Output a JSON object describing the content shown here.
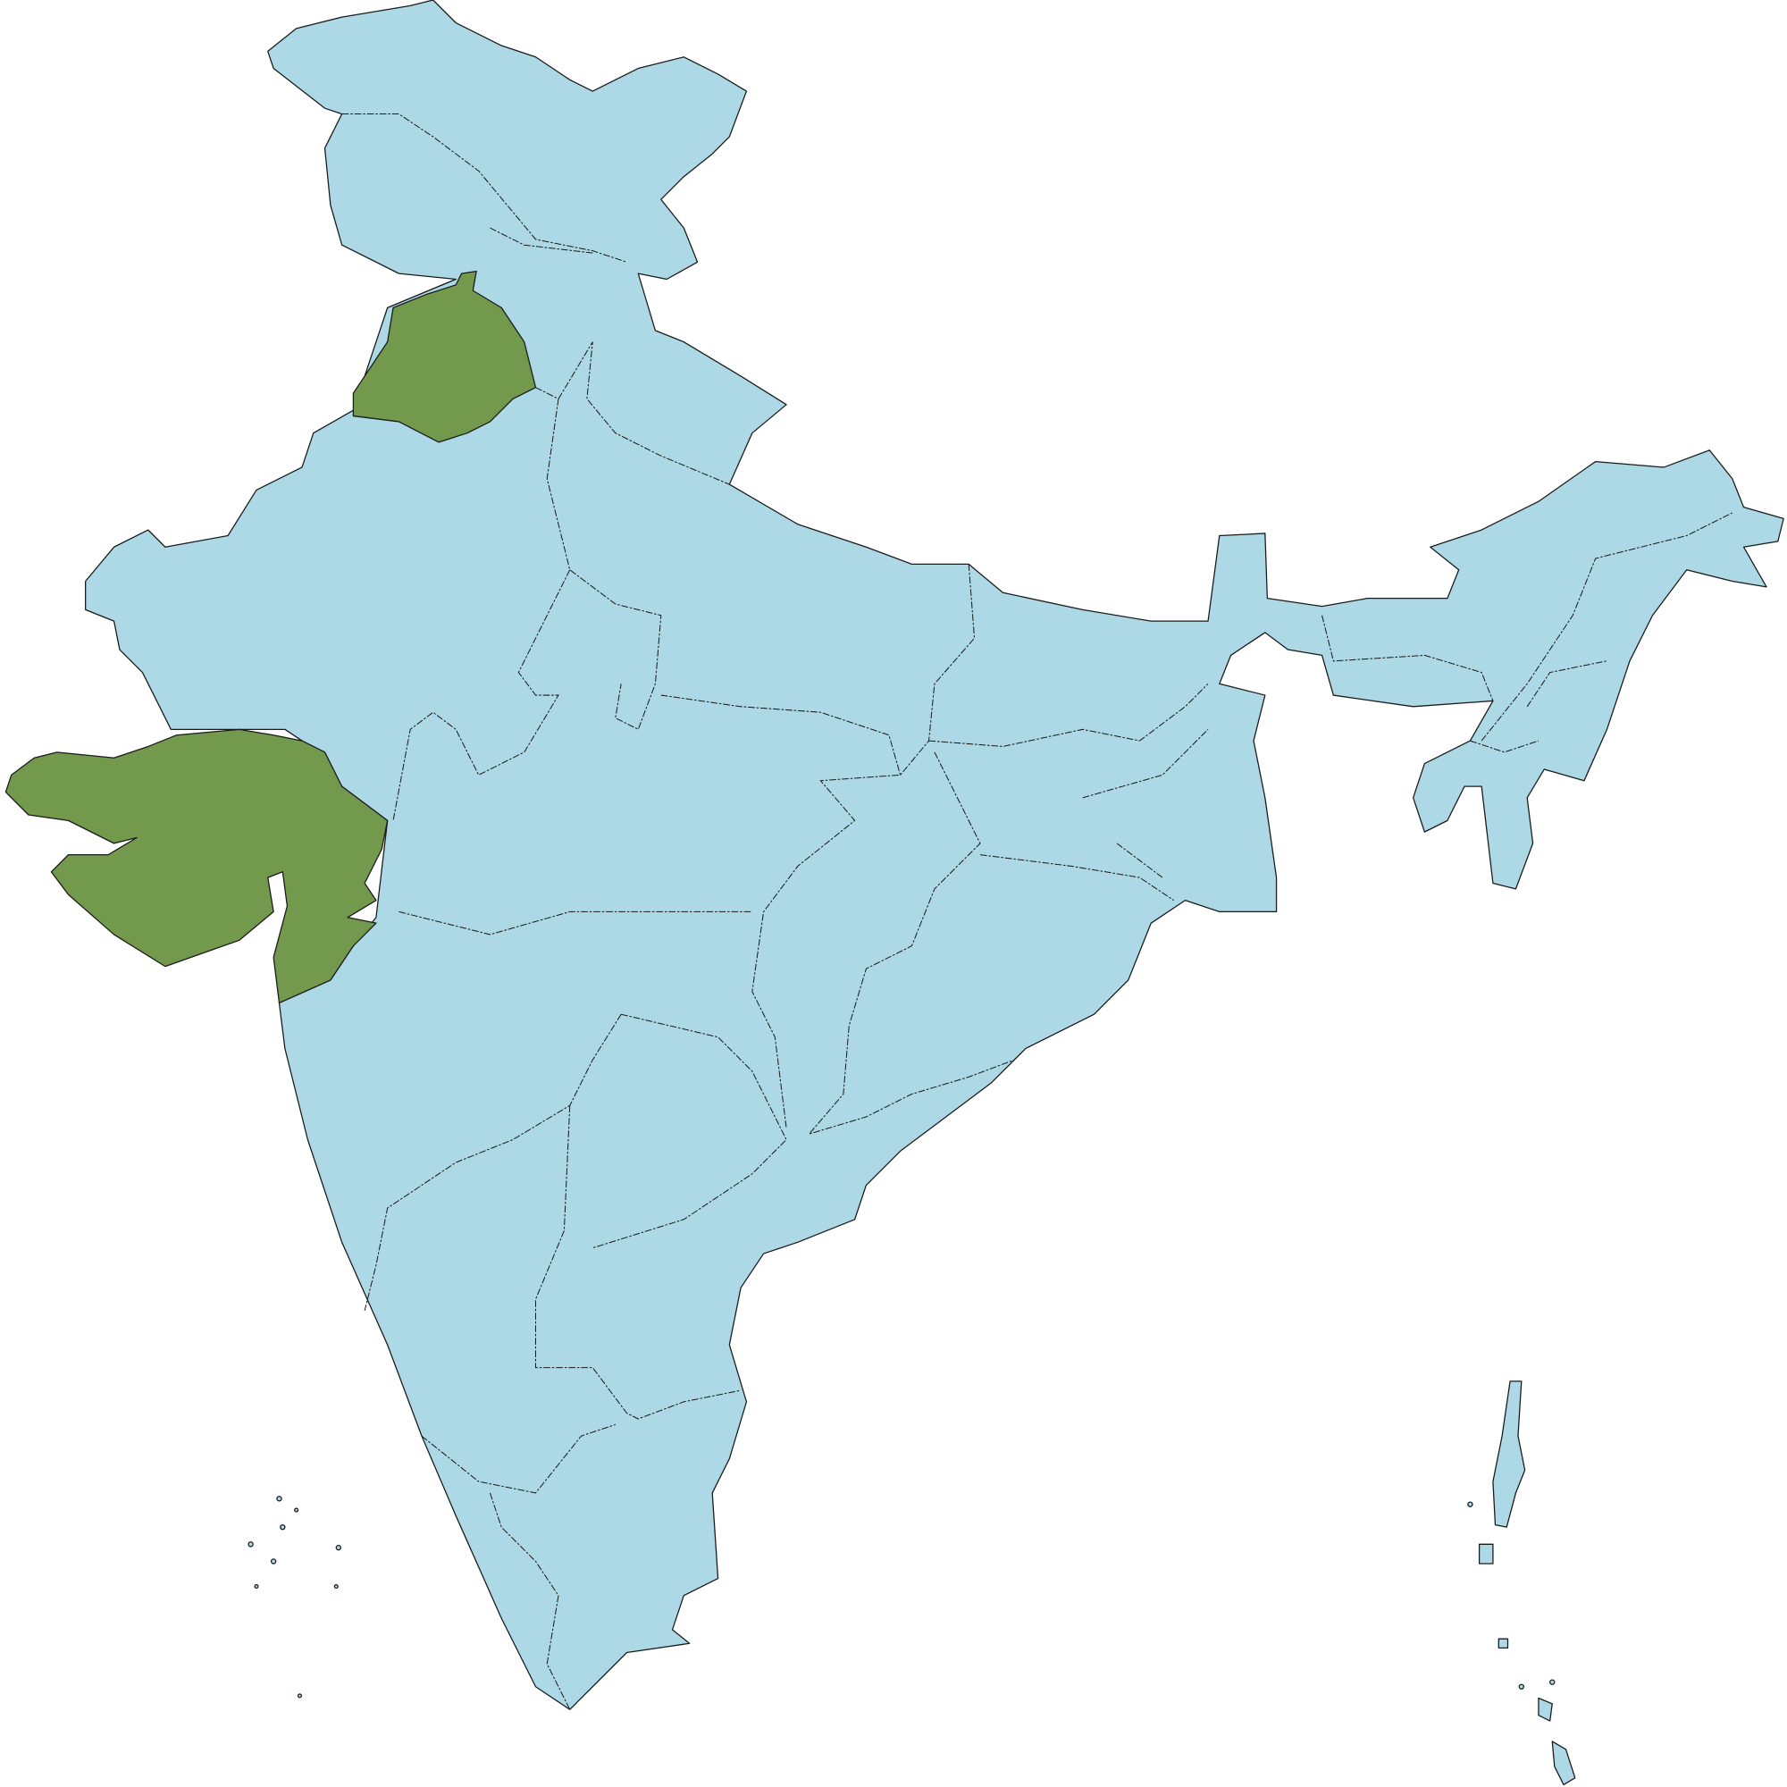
{
  "map": {
    "colors": {
      "default_region": "#ADD8E6",
      "highlighted_region": "#72994C",
      "border": "#1a1a1a",
      "background": "#FFFFFF"
    }
  }
}
